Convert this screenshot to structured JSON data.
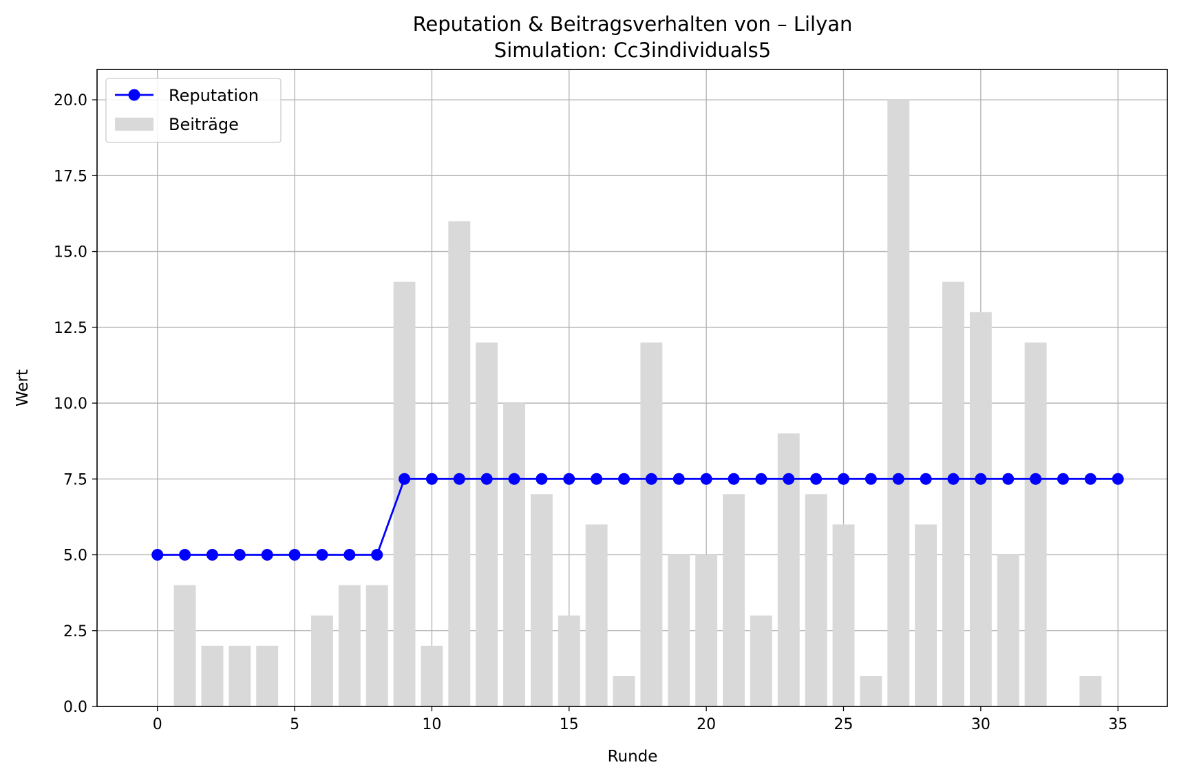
{
  "chart_data": {
    "type": "bar+line",
    "title": "Reputation & Beitragsverhalten von – Lilyan",
    "subtitle": "Simulation: Cc3individuals5",
    "xlabel": "Runde",
    "ylabel": "Wert",
    "xlim": [
      -2.2,
      36.8
    ],
    "ylim": [
      0,
      21
    ],
    "x_ticks": [
      0,
      5,
      10,
      15,
      20,
      25,
      30,
      35
    ],
    "x_tick_labels": [
      "0",
      "5",
      "10",
      "15",
      "20",
      "25",
      "30",
      "35"
    ],
    "y_ticks": [
      0,
      2.5,
      5,
      7.5,
      10,
      12.5,
      15,
      17.5,
      20
    ],
    "y_tick_labels": [
      "0.0",
      "2.5",
      "5.0",
      "7.5",
      "10.0",
      "12.5",
      "15.0",
      "17.5",
      "20.0"
    ],
    "grid": true,
    "legend_position": "top-left",
    "x": [
      0,
      1,
      2,
      3,
      4,
      5,
      6,
      7,
      8,
      9,
      10,
      11,
      12,
      13,
      14,
      15,
      16,
      17,
      18,
      19,
      20,
      21,
      22,
      23,
      24,
      25,
      26,
      27,
      28,
      29,
      30,
      31,
      32,
      33,
      34,
      35
    ],
    "series": [
      {
        "name": "Reputation",
        "kind": "line",
        "marker": "circle",
        "color": "#0000ff",
        "values": [
          5,
          5,
          5,
          5,
          5,
          5,
          5,
          5,
          5,
          7.5,
          7.5,
          7.5,
          7.5,
          7.5,
          7.5,
          7.5,
          7.5,
          7.5,
          7.5,
          7.5,
          7.5,
          7.5,
          7.5,
          7.5,
          7.5,
          7.5,
          7.5,
          7.5,
          7.5,
          7.5,
          7.5,
          7.5,
          7.5,
          7.5,
          7.5,
          7.5
        ]
      },
      {
        "name": "Beiträge",
        "kind": "bar",
        "color": "#d9d9d9",
        "values": [
          0,
          4,
          2,
          2,
          2,
          0,
          3,
          4,
          4,
          14,
          2,
          16,
          12,
          10,
          7,
          3,
          6,
          1,
          12,
          5,
          5,
          7,
          3,
          9,
          7,
          6,
          1,
          20,
          6,
          14,
          13,
          5,
          12,
          0,
          1,
          0
        ]
      }
    ]
  }
}
